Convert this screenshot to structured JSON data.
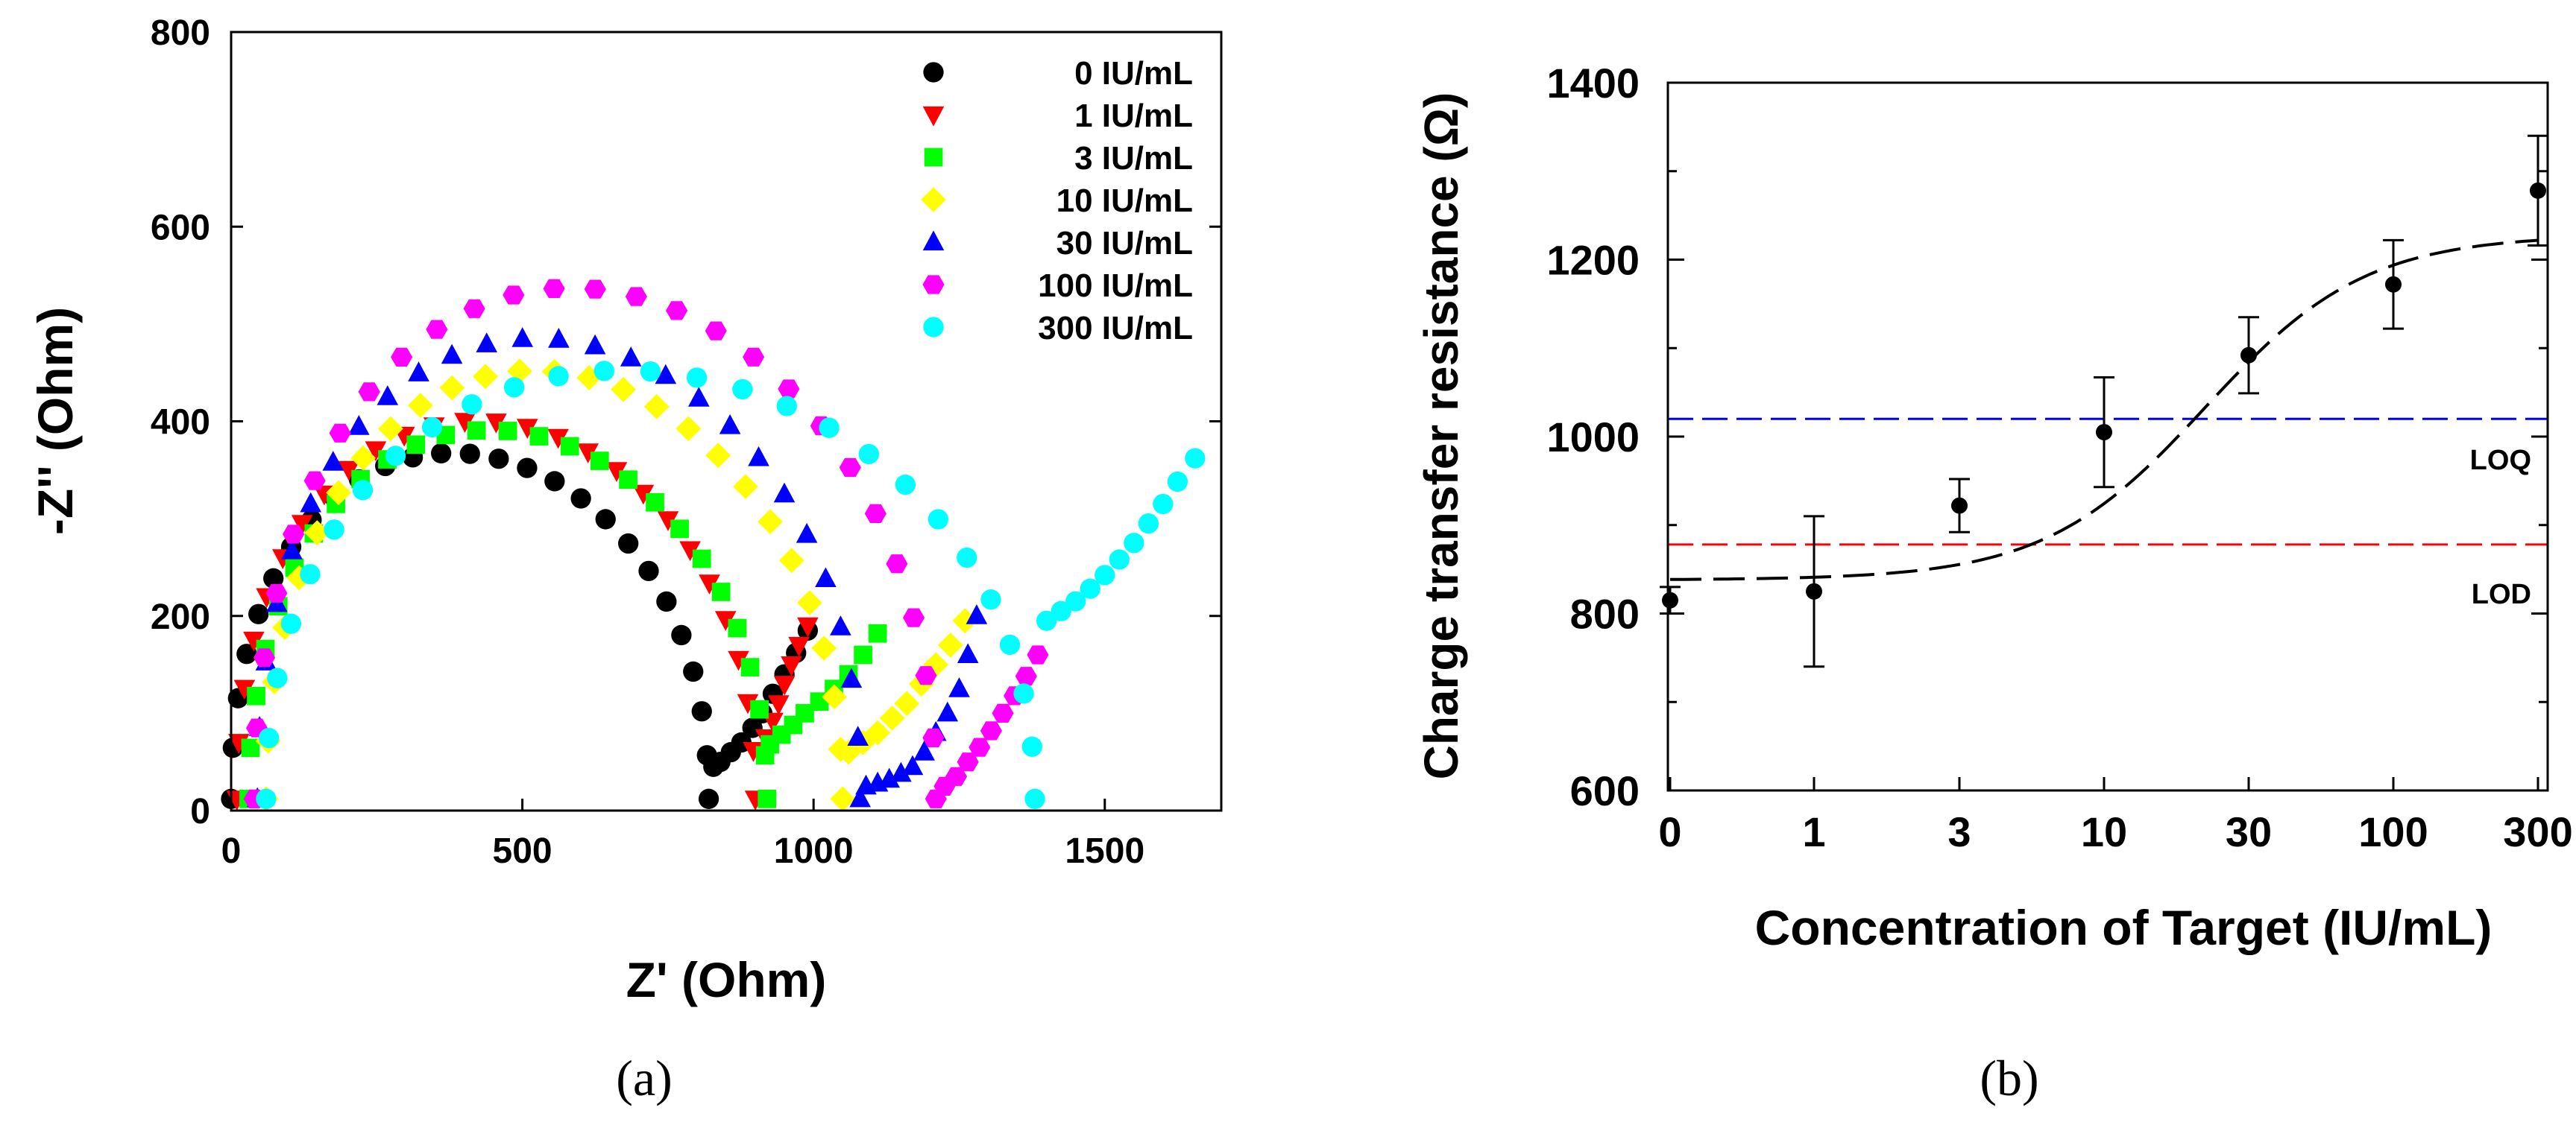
{
  "panel_labels": {
    "a": "(a)",
    "b": "(b)"
  },
  "colors": {
    "s0": "#000000",
    "s1": "#ff0000",
    "s3": "#00ff00",
    "s10": "#ffff00",
    "s30": "#0000ff",
    "s100": "#ff00ff",
    "s300": "#00ffff",
    "fit": "#000000",
    "loq": "#0000ff",
    "lod": "#ff0000"
  },
  "chart_data": [
    {
      "type": "scatter",
      "title": "",
      "xlabel": "Z' (Ohm)",
      "ylabel": "-Z'' (Ohm)",
      "xlim": [
        0,
        1700
      ],
      "ylim": [
        0,
        800
      ],
      "x_ticks": [
        0,
        500,
        1000,
        1500
      ],
      "x_tick_labels": [
        "0",
        "500",
        "1000",
        "1500"
      ],
      "y_ticks": [
        0,
        200,
        400,
        600,
        800
      ],
      "y_tick_labels": [
        "0",
        "200",
        "400",
        "600",
        "800"
      ],
      "legend_position": "top-right",
      "series": [
        {
          "name": "0  IU/mL",
          "marker": "circle",
          "color": "#000000",
          "semicircle": {
            "start": 0,
            "rct": 820,
            "peak": 390,
            "skew": 0.85
          },
          "tail": {
            "x": [
              828,
              840,
              858,
              876,
              895,
              912,
              930,
              950,
              970,
              990
            ],
            "y": [
              45,
              50,
              60,
              70,
              85,
              100,
              120,
              140,
              162,
              185
            ]
          }
        },
        {
          "name": "1 IU/mL",
          "marker": "triangle-down",
          "color": "#ff0000",
          "semicircle": {
            "start": 10,
            "rct": 900,
            "peak": 425,
            "skew": 0.85
          },
          "tail": {
            "x": [
              908,
              918,
              930,
              940,
              950,
              962,
              975,
              990
            ],
            "y": [
              60,
              75,
              92,
              110,
              130,
              150,
              170,
              190
            ]
          }
        },
        {
          "name": "3  IU/mL",
          "marker": "square",
          "color": "#00ff00",
          "semicircle": {
            "start": 30,
            "rct": 920,
            "peak": 415,
            "skew": 0.88
          },
          "tail": {
            "x": [
              925,
              945,
              965,
              985,
              1010,
              1035,
              1060,
              1085,
              1110
            ],
            "y": [
              68,
              78,
              88,
              100,
              112,
              125,
              140,
              160,
              182
            ]
          }
        },
        {
          "name": "10 IU/mL",
          "marker": "diamond",
          "color": "#ffff00",
          "semicircle": {
            "start": 60,
            "rct": 1050,
            "peak": 480,
            "skew": 0.9
          },
          "tail": {
            "x": [
              1060,
              1085,
              1110,
              1135,
              1160,
              1185,
              1210,
              1235,
              1260
            ],
            "y": [
              60,
              70,
              80,
              95,
              110,
              130,
              150,
              170,
              195
            ]
          }
        },
        {
          "name": "30 IU/mL",
          "marker": "triangle-up",
          "color": "#0000ff",
          "semicircle": {
            "start": 45,
            "rct": 1080,
            "peak": 515,
            "skew": 0.85
          },
          "tail": {
            "x": [
              1090,
              1110,
              1130,
              1150,
              1170,
              1190,
              1210,
              1230,
              1250,
              1265,
              1280
            ],
            "y": [
              25,
              28,
              32,
              38,
              45,
              60,
              80,
              100,
              125,
              160,
              200
            ]
          }
        },
        {
          "name": "100 IU/mL",
          "marker": "hexagon",
          "color": "#ff00ff",
          "semicircle": {
            "start": 40,
            "rct": 1210,
            "peak": 570,
            "skew": 0.9
          },
          "tail": {
            "x": [
              1225,
              1245,
              1265,
              1285,
              1305,
              1325,
              1345,
              1365,
              1385
            ],
            "y": [
              25,
              35,
              50,
              65,
              82,
              100,
              118,
              138,
              160
            ]
          }
        },
        {
          "name": "300 IU/mL",
          "marker": "circle",
          "color": "#00ffff",
          "semicircle": {
            "start": 60,
            "rct": 1380,
            "peak": 480,
            "skew": 0.88
          },
          "tail": {
            "x": [
              1400,
              1425,
              1450,
              1475,
              1500,
              1525,
              1550,
              1575,
              1600,
              1625,
              1655
            ],
            "y": [
              195,
              205,
              215,
              228,
              242,
              258,
              275,
              295,
              315,
              338,
              362
            ]
          }
        }
      ]
    },
    {
      "type": "scatter",
      "title": "",
      "xlabel": "Concentration of Target (IU/mL)",
      "ylabel": "Charge transfer resistance (Ω)",
      "categories": [
        "0",
        "1",
        "3",
        "10",
        "30",
        "100",
        "300"
      ],
      "ylim": [
        600,
        1400
      ],
      "y_ticks": [
        600,
        800,
        1000,
        1200,
        1400
      ],
      "y_tick_labels": [
        "600",
        "800",
        "1000",
        "1200",
        "1400"
      ],
      "values": [
        815,
        825,
        922,
        1005,
        1092,
        1172,
        1278
      ],
      "errors": [
        15,
        85,
        30,
        62,
        43,
        50,
        62
      ],
      "fit_curve": {
        "bottom": 838,
        "top": 1228,
        "ec50_index": 3.7,
        "hill": 1.5
      },
      "reference_lines": [
        {
          "label": "LOQ",
          "y": 1020,
          "color": "#0000ff"
        },
        {
          "label": "LOD",
          "y": 878,
          "color": "#ff0000"
        }
      ]
    }
  ]
}
